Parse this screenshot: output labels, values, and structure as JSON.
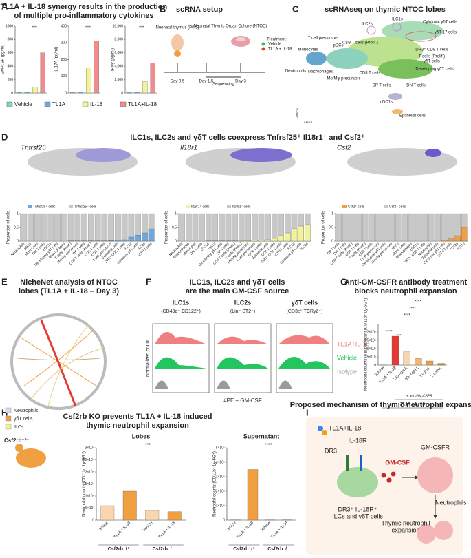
{
  "panels": {
    "A": {
      "letter": "A",
      "title": [
        "TL1A + IL-18 synergy results in the production",
        "of multiple pro-inflammatory cytokines"
      ],
      "legend": [
        "Vehicle",
        "TL1A",
        "IL-18",
        "TL1A+IL-18"
      ],
      "legend_colors": [
        "#7fd6c0",
        "#6fa8dc",
        "#f2f29a",
        "#f28c8c"
      ],
      "stars": [
        "****",
        "****",
        "****"
      ]
    },
    "B": {
      "letter": "B",
      "title": "scRNA setup",
      "labels": [
        "Neonatal thymus (P0.5)",
        "Neonatal Thymic Organ Culture (NTOC)",
        "Treatment:",
        "Vehicle",
        "TL1A + IL-18",
        "Day 0.5",
        "Day 1.5",
        "Day 3",
        "Sequencing"
      ]
    },
    "C": {
      "letter": "C",
      "title": "scRNAseq on thymic NTOC lobes",
      "clusters": [
        "ILC1s",
        "ILC2s",
        "Cytotoxic γδT cells",
        "γδT-17 cells",
        "T cell precursors",
        "pDCs",
        "CD8 T cells (Prolif.)",
        "DR3⁺ CD8 T cells",
        "Monocytes",
        "T cells (Prolif.)",
        "γδT cells",
        "Developing γδT cells",
        "Neutrophils",
        "Macrophages",
        "Mo/Mφ precursors",
        "CD8 T cells",
        "DP T cells",
        "DN T cells",
        "cDC1s",
        "Epithelial cells"
      ],
      "axes": [
        "UMAP 1",
        "UMAP 2"
      ]
    },
    "D": {
      "letter": "D",
      "title": "ILC1s, ILC2s and γδT cells coexpress Tnfrsf25⁺ Il18r1⁺ and Csf2⁺",
      "genes": [
        "Tnfrsf25",
        "Il18r1",
        "Csf2"
      ]
    },
    "E": {
      "letter": "E",
      "title": [
        "NicheNet analysis of NTOC",
        "lobes (TL1A + IL-18 – Day 3)"
      ],
      "legend": [
        "Neutrophils",
        "γδT cells",
        "ILCs"
      ],
      "legend_colors": [
        "#d6dcef",
        "#f0a040",
        "#f2f29a"
      ]
    },
    "F": {
      "letter": "F",
      "title": [
        "ILC1s, ILC2s and γδT cells",
        "are the main GM-CSF source"
      ],
      "gates": [
        "ILC1s",
        "ILC2s",
        "γδT cells"
      ],
      "gate_markers": [
        "(CD49a⁺ CD122⁺)",
        "(Lin⁻ ST2⁺)",
        "(CD3ε⁺ TCRγδ⁺)"
      ],
      "ylabel": "Normalized count",
      "xlabel": "#PE – GM-CSF",
      "legend": [
        "TL1A+IL-18",
        "Vehicle",
        "Isotype"
      ],
      "legend_colors": [
        "#f08080",
        "#22c55e",
        "#9a9a9a"
      ]
    },
    "G": {
      "letter": "G",
      "title": [
        "Anti-GM-CSFR antibody treatment",
        "blocks neutrophil expansion"
      ],
      "labels": [
        "+ anti-GM-CSFR",
        "TL1A + IL-18"
      ],
      "stars": [
        "****",
        "***",
        "****",
        "****",
        "****"
      ]
    },
    "H": {
      "letter": "H",
      "title": [
        "Csf2rb KO prevents TL1A + IL-18 induced",
        "thymic neutrophil expansion"
      ],
      "mouse": "Csf2rb⁻/⁻"
    },
    "I": {
      "letter": "I",
      "title": "Proposed mechanism of thymic neutrophil expansion",
      "labels": [
        "TL1A+IL-18",
        "IL-18R",
        "DR3",
        "GM-CSF",
        "GM-CSFR",
        "DR3⁺ IL-18R⁺",
        "ILCs and γδT cells",
        "Neutrophils",
        "Thymic neutrophil",
        "expansion"
      ]
    }
  },
  "chart_data": [
    {
      "type": "bar",
      "ylabel": "GM-CSF (pg/ml)",
      "values": [
        8,
        12,
        90,
        600
      ],
      "colors": [
        "#7fd6c0",
        "#6fa8dc",
        "#f2f29a",
        "#f28c8c"
      ],
      "ylim": [
        0,
        1000
      ],
      "yticks": [
        0,
        200,
        400,
        600,
        800,
        1000
      ]
    },
    {
      "type": "bar",
      "ylabel": "IL-17A (pg/ml)",
      "values": [
        3,
        6,
        150,
        310
      ],
      "colors": [
        "#7fd6c0",
        "#6fa8dc",
        "#f2f29a",
        "#f28c8c"
      ],
      "ylim": [
        0,
        400
      ],
      "yticks": [
        0,
        100,
        200,
        300,
        400
      ]
    },
    {
      "type": "bar",
      "ylabel": "IFNγ (pg/ml)",
      "values": [
        80,
        150,
        1700,
        4500
      ],
      "colors": [
        "#7fd6c0",
        "#6fa8dc",
        "#f2f29a",
        "#f28c8c"
      ],
      "ylim": [
        0,
        10000
      ],
      "yticks": [
        0,
        {
          "value": 2000,
          "label": "2,000"
        },
        {
          "value": 4000,
          "label": "4,000"
        },
        {
          "value": 6000,
          "label": "6,000"
        },
        {
          "value": 8000,
          "label": "8,000"
        },
        {
          "value": 10000,
          "label": "10,000"
        }
      ]
    },
    {
      "type": "stacked",
      "ylabel": "Proportion of cells",
      "legend": [
        "Tnfrsf25⁺ cells",
        "Tnfrsf25⁻ cells"
      ],
      "color": "#6fa8dc",
      "rest_color": "#c8c8c8",
      "ylim": [
        0,
        1
      ],
      "yticks": [
        0,
        0.5,
        1
      ],
      "categories": [
        "Neutrophils",
        "pDCs",
        "Monocytes",
        "DN T cells",
        "cDC1s",
        "Developing γδT cells",
        "Macrophages",
        "T cells (Prolif.)",
        "Mo/Mφ precursors",
        "DP T cells",
        "CD8 T cells (Prolif.)",
        "CD8 T cells",
        "CD4 T cells",
        "T cell precursors",
        "Epithelial cells",
        "DR3⁺ CD8 T cells",
        "ILC1s",
        "Cytotoxic γδT cells",
        "ILC2s",
        "γδT-17 cells"
      ],
      "values": [
        0,
        0,
        0,
        0,
        0,
        0,
        0,
        0.005,
        0.005,
        0.005,
        0.01,
        0.01,
        0.01,
        0.02,
        0.03,
        0.05,
        0.15,
        0.22,
        0.3,
        0.45
      ]
    },
    {
      "type": "stacked",
      "ylabel": "Proportion of cells",
      "legend": [
        "Il18r1⁺ cells",
        "Il18r1⁻ cells"
      ],
      "color": "#f2f29a",
      "rest_color": "#c8c8c8",
      "ylim": [
        0,
        1
      ],
      "yticks": [
        0,
        0.5,
        1
      ],
      "categories": [
        "Neutrophils",
        "Macrophages",
        "Monocytes",
        "DN T cells",
        "cDC1s",
        "pDCs",
        "Developing γδT cells",
        "DP T cells",
        "CD8 T cells (Prolif.)",
        "T cells (Prolif.)",
        "Mo/Mφ precursors",
        "T cell precursors",
        "CD4 T cells",
        "Epithelial cells",
        "CD8 T cells",
        "DR3⁺ CD8 T cells",
        "γδT-17 cells",
        "ILC1s",
        "Cytotoxic γδT cells",
        "ILC2s"
      ],
      "values": [
        0,
        0,
        0,
        0,
        0.005,
        0.005,
        0.01,
        0.01,
        0.01,
        0.02,
        0.02,
        0.03,
        0.04,
        0.05,
        0.1,
        0.2,
        0.3,
        0.45,
        0.55,
        0.6
      ]
    },
    {
      "type": "stacked",
      "ylabel": "Proportion of cells",
      "legend": [
        "Csf2⁺ cells",
        "Csf2⁻ cells"
      ],
      "color": "#f0a040",
      "rest_color": "#c8c8c8",
      "ylim": [
        0,
        1
      ],
      "yticks": [
        0,
        0.5,
        1
      ],
      "categories": [
        "DP T cells",
        "DN T cells",
        "CD8 T cells (Prolif.)",
        "CD4 T cells",
        "T cells (Prolif.)",
        "CD8 T cells",
        "T cell precursors",
        "Developing γδT cells",
        "Mo/Mφ precursors",
        "pDCs",
        "Monocytes",
        "Macrophages",
        "cDC1s",
        "DR3⁺ CD8 T cells",
        "Neutrophils",
        "Epithelial cells",
        "Cytotoxic γδT cells",
        "γδT-17 cells",
        "ILC2s",
        "ILC1s"
      ],
      "values": [
        0,
        0,
        0,
        0,
        0,
        0,
        0,
        0,
        0,
        0,
        0,
        0,
        0,
        0,
        0,
        0,
        0.03,
        0.08,
        0.2,
        0.5
      ]
    },
    {
      "type": "bar",
      "ylabel": "Neutrophil counts in supernatant (CD11b⁺ Ly-6G⁺)",
      "categories": [
        "Vehicle",
        "TL1A + IL-18",
        "250 ng/mL",
        "500 ng/mL",
        "1 μg/mL",
        "2 μg/mL"
      ],
      "values": [
        5000,
        1750000,
        800000,
        400000,
        250000,
        100000
      ],
      "colors": [
        "#bbbbbb",
        "#e53935",
        "#f8d7b0",
        "#f5b56b",
        "#f0a040",
        "#e8891a"
      ],
      "ylim": [
        0,
        2500000
      ],
      "yticks": [
        0,
        {
          "value": 500000,
          "label": "5×10⁵"
        },
        {
          "value": 1000000,
          "label": "1×10⁶"
        },
        {
          "value": 1500000,
          "label": "1.5×10⁶"
        },
        {
          "value": 2000000,
          "label": "2×10⁶"
        }
      ]
    },
    {
      "type": "bar",
      "title": "Lobes",
      "annotation": "***",
      "ylabel": "Neutrophil counts (CD11b⁺ Ly-6G⁺)",
      "categories": [
        "Vehicle",
        "TL1A + IL-18",
        "Vehicle",
        "TL1A + IL-18"
      ],
      "groups": [
        "Csf2rb⁺/⁺",
        "Csf2rb⁻/⁻"
      ],
      "values": [
        6000,
        12000,
        4000,
        3500
      ],
      "colors": [
        "#f8d7b0",
        "#f0a040",
        "#f8d7b0",
        "#f0a040"
      ],
      "ylim": [
        0,
        30000
      ],
      "yticks": [
        0,
        {
          "value": 5000,
          "label": "5×10³"
        },
        {
          "value": 10000,
          "label": "1×10⁴"
        },
        {
          "value": 15000,
          "label": "1.5×10⁴"
        },
        {
          "value": 20000,
          "label": "2×10⁴"
        },
        {
          "value": 25000,
          "label": "2.5×10⁴"
        },
        {
          "value": 30000,
          "label": "3×10⁴"
        }
      ]
    },
    {
      "type": "bar",
      "title": "Supernatant",
      "annotation": "****",
      "ylabel": "Neutrophil counts (CD11b⁺ Ly-6G⁺)",
      "categories": [
        "Vehicle",
        "TL1A + IL-18",
        "Vehicle",
        "TL1A + IL-18"
      ],
      "groups": [
        "Csf2rb⁺/⁺",
        "Csf2rb⁻/⁻"
      ],
      "values": [
        1000,
        350000,
        2000,
        2000
      ],
      "colors": [
        "#f8d7b0",
        "#f0a040",
        "#f8d7b0",
        "#f0a040"
      ],
      "ylim": [
        0,
        500000
      ],
      "yticks": [
        0,
        {
          "value": 100000,
          "label": "1×10⁵"
        },
        {
          "value": 200000,
          "label": "2×10⁵"
        },
        {
          "value": 300000,
          "label": "3×10⁵"
        },
        {
          "value": 400000,
          "label": "4×10⁵"
        },
        {
          "value": 500000,
          "label": "5×10⁵"
        }
      ]
    }
  ]
}
